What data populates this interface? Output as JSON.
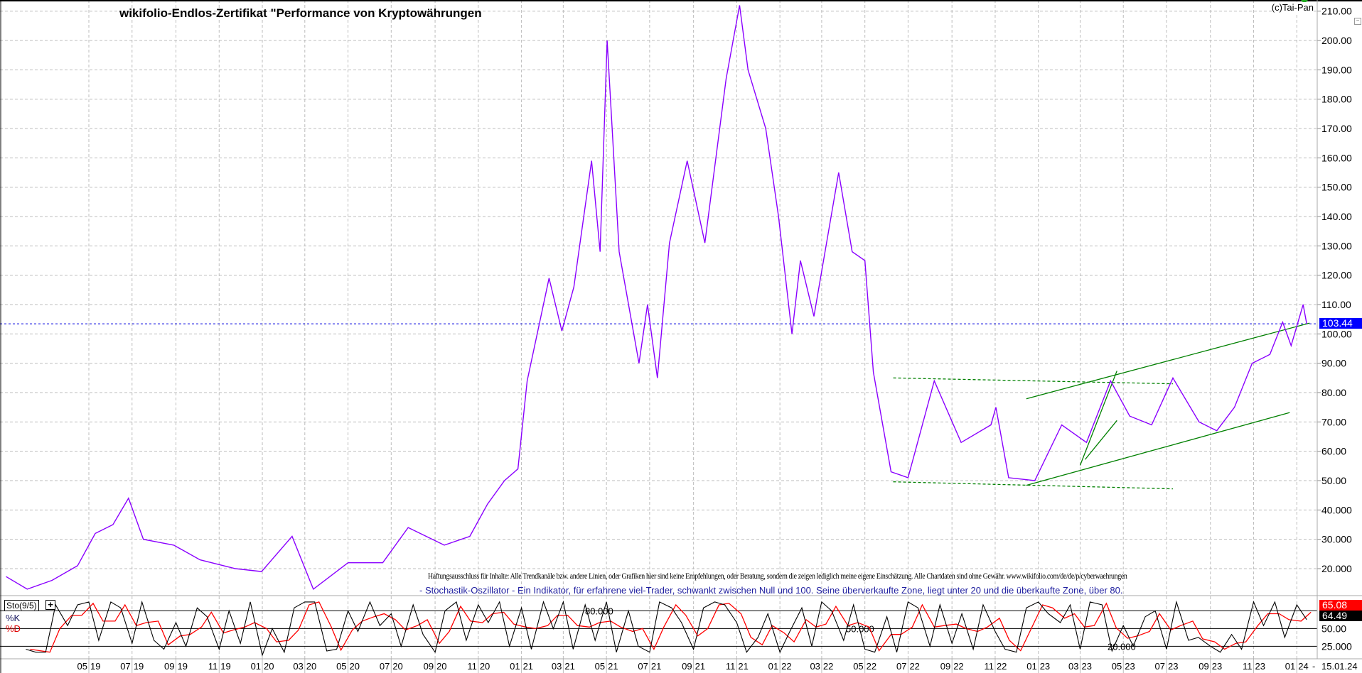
{
  "header": {
    "title": "wikifolio-Endlos-Zertifikat \"Performance von Kryptowährungen",
    "copyright": "(c)Tai-Pan",
    "collapse_symbol": "−"
  },
  "notes": {
    "disclaimer": "Haftungsausschluss für Inhalte: Alle Trendkanäle bzw. andere Linien, oder Grafiken hier sind keine Empfehlungen, oder Beratung, sondern die zeigen lediglich meine eigene Einschätzung. Alle Chartdaten sind ohne Gewähr.  www.wikifolio.com/de/de/p/cyberwaehrungen",
    "stochastic_description": "- Stochastik-Oszillator - Ein Indikator, für erfahrene viel-Trader, schwankt zwischen Null und 100. Seine überverkaufte Zone, liegt unter 20 und die überkaufte Zone, über 80."
  },
  "indicator_panel": {
    "name": "Sto(9/5)",
    "add_symbol": "+",
    "k_label": "%K",
    "d_label": "%D"
  },
  "colors": {
    "price": "#8a00ff",
    "trend": "#008000",
    "last_price_line": "#0000e0",
    "k_line": "#000000",
    "d_line": "#ff0000",
    "grid": "#bdbdbd",
    "k_badge": "#000000",
    "d_badge": "#ff0000",
    "price_badge": "#0000ff"
  },
  "chart_data": {
    "type": "line",
    "title": "wikifolio-Endlos-Zertifikat \"Performance von Kryptowährungen",
    "ylim": [
      10,
      212
    ],
    "grid": true,
    "y_ticks": [
      20,
      30,
      40,
      50,
      60,
      70,
      80,
      90,
      100,
      110,
      120,
      130,
      140,
      150,
      160,
      170,
      180,
      190,
      200,
      210
    ],
    "y_tick_labels": [
      "20.000",
      "30.000",
      "40.000",
      "50.00",
      "60.00",
      "70.00",
      "80.00",
      "90.00",
      "100.00",
      "110.00",
      "120.00",
      "130.00",
      "140.00",
      "150.00",
      "160.00",
      "170.00",
      "180.00",
      "190.00",
      "200.00",
      "210.00"
    ],
    "x_ticks": [
      {
        "date": "2019-05-01",
        "m": "05",
        "y": "19"
      },
      {
        "date": "2019-07-01",
        "m": "07",
        "y": "19"
      },
      {
        "date": "2019-09-01",
        "m": "09",
        "y": "19"
      },
      {
        "date": "2019-11-01",
        "m": "11",
        "y": "19"
      },
      {
        "date": "2020-01-01",
        "m": "01",
        "y": "20"
      },
      {
        "date": "2020-03-01",
        "m": "03",
        "y": "20"
      },
      {
        "date": "2020-05-01",
        "m": "05",
        "y": "20"
      },
      {
        "date": "2020-07-01",
        "m": "07",
        "y": "20"
      },
      {
        "date": "2020-09-01",
        "m": "09",
        "y": "20"
      },
      {
        "date": "2020-11-01",
        "m": "11",
        "y": "20"
      },
      {
        "date": "2021-01-01",
        "m": "01",
        "y": "21"
      },
      {
        "date": "2021-03-01",
        "m": "03",
        "y": "21"
      },
      {
        "date": "2021-05-01",
        "m": "05",
        "y": "21"
      },
      {
        "date": "2021-07-01",
        "m": "07",
        "y": "21"
      },
      {
        "date": "2021-09-01",
        "m": "09",
        "y": "21"
      },
      {
        "date": "2021-11-01",
        "m": "11",
        "y": "21"
      },
      {
        "date": "2022-01-01",
        "m": "01",
        "y": "22"
      },
      {
        "date": "2022-03-01",
        "m": "03",
        "y": "22"
      },
      {
        "date": "2022-05-01",
        "m": "05",
        "y": "22"
      },
      {
        "date": "2022-07-01",
        "m": "07",
        "y": "22"
      },
      {
        "date": "2022-09-01",
        "m": "09",
        "y": "22"
      },
      {
        "date": "2022-11-01",
        "m": "11",
        "y": "22"
      },
      {
        "date": "2023-01-01",
        "m": "01",
        "y": "23"
      },
      {
        "date": "2023-03-01",
        "m": "03",
        "y": "23"
      },
      {
        "date": "2023-05-01",
        "m": "05",
        "y": "23"
      },
      {
        "date": "2023-07-01",
        "m": "07",
        "y": "23"
      },
      {
        "date": "2023-09-01",
        "m": "09",
        "y": "23"
      },
      {
        "date": "2023-11-01",
        "m": "11",
        "y": "23"
      },
      {
        "date": "2024-01-01",
        "m": "01",
        "y": "24"
      }
    ],
    "last_date": "15.01.24",
    "last_date_prefix": "-",
    "last_price": 103.44,
    "last_price_label": "103.44",
    "series": [
      {
        "points": [
          [
            "2019-01-04",
            17.3
          ],
          [
            "2019-02-03",
            13
          ],
          [
            "2019-03-10",
            16
          ],
          [
            "2019-04-15",
            21
          ],
          [
            "2019-05-10",
            32
          ],
          [
            "2019-06-04",
            35
          ],
          [
            "2019-06-26",
            44
          ],
          [
            "2019-07-17",
            30
          ],
          [
            "2019-08-29",
            28
          ],
          [
            "2019-10-05",
            23
          ],
          [
            "2019-11-24",
            20
          ],
          [
            "2019-12-31",
            19
          ],
          [
            "2020-02-12",
            31
          ],
          [
            "2020-03-13",
            13
          ],
          [
            "2020-05-01",
            22
          ],
          [
            "2020-06-19",
            22
          ],
          [
            "2020-07-25",
            34
          ],
          [
            "2020-09-14",
            28
          ],
          [
            "2020-10-20",
            31
          ],
          [
            "2020-11-14",
            42
          ],
          [
            "2020-12-08",
            50
          ],
          [
            "2020-12-27",
            54
          ],
          [
            "2021-01-09",
            84
          ],
          [
            "2021-02-09",
            119
          ],
          [
            "2021-02-27",
            101
          ],
          [
            "2021-03-16",
            116
          ],
          [
            "2021-04-10",
            159
          ],
          [
            "2021-04-22",
            128
          ],
          [
            "2021-05-02",
            200
          ],
          [
            "2021-05-19",
            128
          ],
          [
            "2021-06-16",
            90
          ],
          [
            "2021-06-28",
            110
          ],
          [
            "2021-07-12",
            85
          ],
          [
            "2021-07-29",
            131
          ],
          [
            "2021-08-23",
            159
          ],
          [
            "2021-09-17",
            131
          ],
          [
            "2021-10-17",
            187
          ],
          [
            "2021-11-05",
            212
          ],
          [
            "2021-11-17",
            190
          ],
          [
            "2021-12-12",
            170
          ],
          [
            "2021-12-30",
            140
          ],
          [
            "2022-01-18",
            100
          ],
          [
            "2022-01-30",
            125
          ],
          [
            "2022-02-18",
            106
          ],
          [
            "2022-03-25",
            155
          ],
          [
            "2022-04-13",
            128
          ],
          [
            "2022-05-01",
            125
          ],
          [
            "2022-05-13",
            87
          ],
          [
            "2022-06-07",
            53
          ],
          [
            "2022-07-01",
            51
          ],
          [
            "2022-08-07",
            84
          ],
          [
            "2022-09-14",
            63
          ],
          [
            "2022-10-26",
            69
          ],
          [
            "2022-11-02",
            75
          ],
          [
            "2022-11-20",
            51
          ],
          [
            "2022-12-27",
            50
          ],
          [
            "2023-02-03",
            69
          ],
          [
            "2023-03-10",
            63
          ],
          [
            "2023-04-13",
            84
          ],
          [
            "2023-05-10",
            72
          ],
          [
            "2023-06-10",
            69
          ],
          [
            "2023-07-10",
            85
          ],
          [
            "2023-08-16",
            70
          ],
          [
            "2023-09-10",
            67
          ],
          [
            "2023-10-05",
            75
          ],
          [
            "2023-10-30",
            90
          ],
          [
            "2023-11-24",
            93
          ],
          [
            "2023-12-12",
            104
          ],
          [
            "2023-12-24",
            96
          ],
          [
            "2024-01-10",
            110
          ],
          [
            "2024-01-15",
            103.44
          ]
        ]
      }
    ],
    "trend_lines": [
      {
        "style": "dashed",
        "from": [
          "2022-06-10",
          85.0
        ],
        "to": [
          "2023-07-10",
          83.0
        ]
      },
      {
        "style": "dashed",
        "from": [
          "2022-06-10",
          49.6
        ],
        "to": [
          "2023-07-10",
          47.2
        ]
      },
      {
        "style": "solid",
        "from": [
          "2022-12-15",
          48.4
        ],
        "to": [
          "2023-12-22",
          73.2
        ]
      },
      {
        "style": "solid",
        "from": [
          "2022-12-15",
          77.9
        ],
        "to": [
          "2024-01-19",
          103.7
        ]
      },
      {
        "style": "solid",
        "from": [
          "2023-03-01",
          55.2
        ],
        "to": [
          "2023-04-22",
          87.4
        ]
      },
      {
        "style": "solid",
        "from": [
          "2023-03-08",
          57.2
        ],
        "to": [
          "2023-04-22",
          70.5
        ]
      }
    ],
    "stochastic": {
      "levels": [
        80,
        50,
        20
      ],
      "level_labels": [
        "80.000",
        "50.000",
        "20.000"
      ],
      "axis_labels": [
        "50.00",
        "25.000"
      ],
      "k_last": "65.08",
      "d_last": "64.49",
      "k": [
        [
          "2019-02-01",
          15
        ],
        [
          "2019-02-15",
          10
        ],
        [
          "2019-03-01",
          10
        ],
        [
          "2019-03-15",
          90
        ],
        [
          "2019-04-01",
          55
        ],
        [
          "2019-04-15",
          90
        ],
        [
          "2019-05-01",
          95
        ],
        [
          "2019-05-15",
          30
        ],
        [
          "2019-06-01",
          95
        ],
        [
          "2019-06-15",
          85
        ],
        [
          "2019-07-01",
          25
        ],
        [
          "2019-07-15",
          95
        ],
        [
          "2019-08-01",
          30
        ],
        [
          "2019-08-15",
          15
        ],
        [
          "2019-09-01",
          60
        ],
        [
          "2019-09-15",
          20
        ],
        [
          "2019-10-01",
          85
        ],
        [
          "2019-10-15",
          70
        ],
        [
          "2019-11-01",
          15
        ],
        [
          "2019-11-15",
          80
        ],
        [
          "2019-12-01",
          25
        ],
        [
          "2019-12-15",
          95
        ],
        [
          "2020-01-01",
          5
        ],
        [
          "2020-01-15",
          50
        ],
        [
          "2020-02-01",
          10
        ],
        [
          "2020-02-15",
          85
        ],
        [
          "2020-03-01",
          95
        ],
        [
          "2020-03-15",
          95
        ],
        [
          "2020-04-01",
          12
        ],
        [
          "2020-04-15",
          15
        ],
        [
          "2020-05-01",
          80
        ],
        [
          "2020-05-15",
          45
        ],
        [
          "2020-06-01",
          95
        ],
        [
          "2020-06-15",
          55
        ],
        [
          "2020-07-01",
          75
        ],
        [
          "2020-07-15",
          20
        ],
        [
          "2020-08-01",
          90
        ],
        [
          "2020-08-15",
          40
        ],
        [
          "2020-09-01",
          10
        ],
        [
          "2020-09-15",
          80
        ],
        [
          "2020-10-01",
          95
        ],
        [
          "2020-10-15",
          30
        ],
        [
          "2020-11-01",
          90
        ],
        [
          "2020-11-15",
          60
        ],
        [
          "2020-12-01",
          95
        ],
        [
          "2020-12-15",
          20
        ],
        [
          "2021-01-01",
          85
        ],
        [
          "2021-01-15",
          15
        ],
        [
          "2021-02-01",
          95
        ],
        [
          "2021-02-15",
          50
        ],
        [
          "2021-03-01",
          95
        ],
        [
          "2021-03-15",
          15
        ],
        [
          "2021-04-01",
          90
        ],
        [
          "2021-04-15",
          30
        ],
        [
          "2021-05-01",
          95
        ],
        [
          "2021-05-15",
          10
        ],
        [
          "2021-06-01",
          80
        ],
        [
          "2021-06-15",
          20
        ],
        [
          "2021-07-01",
          10
        ],
        [
          "2021-07-15",
          95
        ],
        [
          "2021-08-01",
          85
        ],
        [
          "2021-08-15",
          60
        ],
        [
          "2021-09-01",
          15
        ],
        [
          "2021-09-15",
          85
        ],
        [
          "2021-10-01",
          95
        ],
        [
          "2021-10-15",
          90
        ],
        [
          "2021-11-01",
          60
        ],
        [
          "2021-11-15",
          10
        ],
        [
          "2021-12-01",
          35
        ],
        [
          "2021-12-15",
          75
        ],
        [
          "2022-01-01",
          10
        ],
        [
          "2022-01-15",
          45
        ],
        [
          "2022-02-01",
          85
        ],
        [
          "2022-02-15",
          20
        ],
        [
          "2022-03-01",
          95
        ],
        [
          "2022-03-15",
          80
        ],
        [
          "2022-04-01",
          30
        ],
        [
          "2022-04-15",
          90
        ],
        [
          "2022-05-01",
          15
        ],
        [
          "2022-05-15",
          10
        ],
        [
          "2022-06-01",
          70
        ],
        [
          "2022-06-15",
          10
        ],
        [
          "2022-07-01",
          95
        ],
        [
          "2022-07-15",
          85
        ],
        [
          "2022-08-01",
          20
        ],
        [
          "2022-08-15",
          90
        ],
        [
          "2022-09-01",
          25
        ],
        [
          "2022-09-15",
          75
        ],
        [
          "2022-10-01",
          15
        ],
        [
          "2022-10-15",
          90
        ],
        [
          "2022-11-01",
          45
        ],
        [
          "2022-11-15",
          15
        ],
        [
          "2022-12-01",
          10
        ],
        [
          "2022-12-15",
          85
        ],
        [
          "2023-01-01",
          95
        ],
        [
          "2023-01-15",
          75
        ],
        [
          "2023-02-01",
          60
        ],
        [
          "2023-02-15",
          90
        ],
        [
          "2023-03-01",
          15
        ],
        [
          "2023-03-15",
          95
        ],
        [
          "2023-04-01",
          90
        ],
        [
          "2023-04-15",
          12
        ],
        [
          "2023-05-01",
          55
        ],
        [
          "2023-05-15",
          20
        ],
        [
          "2023-06-01",
          70
        ],
        [
          "2023-06-15",
          80
        ],
        [
          "2023-07-01",
          15
        ],
        [
          "2023-07-15",
          95
        ],
        [
          "2023-08-01",
          30
        ],
        [
          "2023-08-15",
          35
        ],
        [
          "2023-09-01",
          20
        ],
        [
          "2023-09-15",
          10
        ],
        [
          "2023-10-01",
          40
        ],
        [
          "2023-10-15",
          15
        ],
        [
          "2023-11-01",
          95
        ],
        [
          "2023-11-15",
          55
        ],
        [
          "2023-12-01",
          95
        ],
        [
          "2023-12-15",
          35
        ],
        [
          "2024-01-01",
          90
        ],
        [
          "2024-01-15",
          65.08
        ]
      ]
    }
  }
}
